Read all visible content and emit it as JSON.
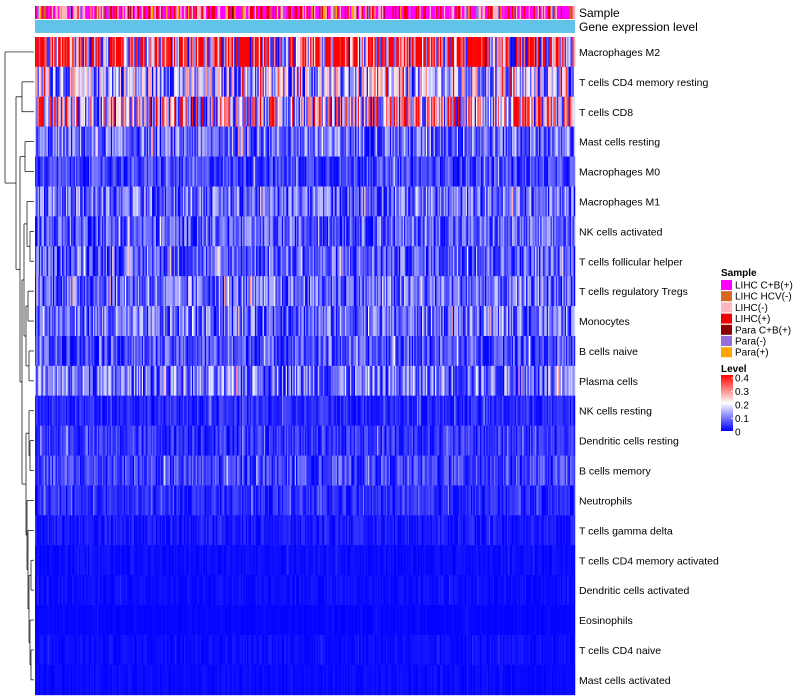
{
  "chart_data": {
    "type": "heatmap",
    "annotation_labels": [
      "Sample",
      "Gene expression level"
    ],
    "rows": [
      {
        "name": "Macrophages M2",
        "mean": 0.3
      },
      {
        "name": "T cells CD4 memory resting",
        "mean": 0.14
      },
      {
        "name": "T cells CD8",
        "mean": 0.2
      },
      {
        "name": "Mast cells resting",
        "mean": 0.08
      },
      {
        "name": "Macrophages M0",
        "mean": 0.05
      },
      {
        "name": "Macrophages M1",
        "mean": 0.08
      },
      {
        "name": "NK cells activated",
        "mean": 0.07
      },
      {
        "name": "T cells follicular helper",
        "mean": 0.07
      },
      {
        "name": "T cells regulatory  Tregs",
        "mean": 0.08
      },
      {
        "name": "Monocytes",
        "mean": 0.08
      },
      {
        "name": "B cells naive",
        "mean": 0.06
      },
      {
        "name": "Plasma cells",
        "mean": 0.09
      },
      {
        "name": "NK cells resting",
        "mean": 0.03
      },
      {
        "name": "Dendritic cells resting",
        "mean": 0.04
      },
      {
        "name": "B cells memory",
        "mean": 0.05
      },
      {
        "name": "Neutrophils",
        "mean": 0.03
      },
      {
        "name": "T cells gamma delta",
        "mean": 0.02
      },
      {
        "name": "T cells CD4 memory activated",
        "mean": 0.01
      },
      {
        "name": "Dendritic cells activated",
        "mean": 0.01
      },
      {
        "name": "Eosinophils",
        "mean": 0.005
      },
      {
        "name": "T cells CD4 naive",
        "mean": 0.01
      },
      {
        "name": "Mast cells activated",
        "mean": 0.008
      }
    ],
    "sample_legend": {
      "title": "Sample",
      "entries": [
        {
          "label": "LIHC C+B(+)",
          "color": "#ff00ff"
        },
        {
          "label": "LIHC HCV(-)",
          "color": "#d2691e"
        },
        {
          "label": "LIHC(-)",
          "color": "#ffb6c1"
        },
        {
          "label": "LIHC(+)",
          "color": "#ee0000"
        },
        {
          "label": "Para C+B(+)",
          "color": "#8b0000"
        },
        {
          "label": "Para(-)",
          "color": "#9370db"
        },
        {
          "label": "Para(+)",
          "color": "#ffa500"
        }
      ]
    },
    "level_legend": {
      "title": "Level",
      "min": 0,
      "max": 0.4,
      "ticks": [
        "0.4",
        "0.3",
        "0.2",
        "0.1",
        "0"
      ],
      "colors": [
        "#0000ff",
        "#ffffff",
        "#ff0000"
      ]
    },
    "gene_expression_color": "#62c3e8",
    "num_samples": 420
  }
}
